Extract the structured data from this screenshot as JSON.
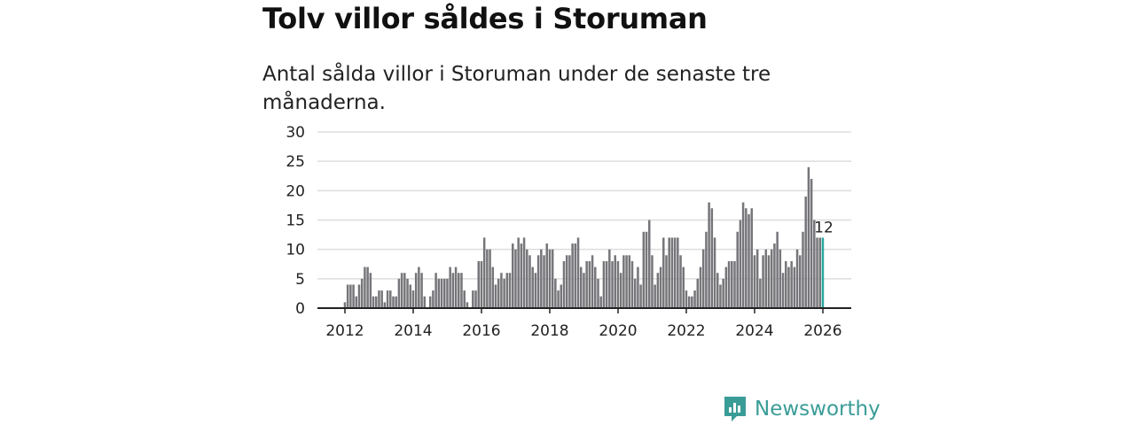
{
  "title": "Tolv villor såldes i Storuman",
  "subtitle": "Antal sålda villor i Storuman under de senaste tre månaderna.",
  "brand": "Newsworthy",
  "colors": {
    "bar": "#76767a",
    "highlight": "#2aa6a0",
    "brand": "#3a9c97",
    "grid": "#dddddd"
  },
  "chart_data": {
    "type": "bar",
    "title": "Tolv villor såldes i Storuman",
    "xlabel": "",
    "ylabel": "",
    "ylim": [
      0,
      30
    ],
    "yticks": [
      "0",
      "5",
      "10",
      "15",
      "20",
      "25",
      "30"
    ],
    "xticks": [
      "2012",
      "2014",
      "2016",
      "2018",
      "2020",
      "2022",
      "2024",
      "2026"
    ],
    "start": "2012-01",
    "frequency": "monthly",
    "values": [
      1,
      4,
      4,
      4,
      2,
      4,
      5,
      7,
      7,
      6,
      2,
      2,
      3,
      3,
      1,
      3,
      3,
      2,
      2,
      5,
      6,
      6,
      5,
      4,
      3,
      6,
      7,
      6,
      2,
      0,
      2,
      3,
      6,
      5,
      5,
      5,
      5,
      7,
      6,
      7,
      6,
      6,
      3,
      1,
      0,
      3,
      3,
      8,
      8,
      12,
      10,
      10,
      7,
      4,
      5,
      6,
      5,
      6,
      6,
      11,
      10,
      12,
      11,
      12,
      10,
      9,
      7,
      6,
      9,
      10,
      9,
      11,
      10,
      10,
      5,
      3,
      4,
      8,
      9,
      9,
      11,
      11,
      12,
      7,
      6,
      8,
      8,
      9,
      7,
      5,
      2,
      8,
      8,
      10,
      8,
      9,
      8,
      6,
      9,
      9,
      9,
      8,
      5,
      7,
      4,
      13,
      13,
      15,
      9,
      4,
      6,
      7,
      12,
      9,
      12,
      12,
      12,
      12,
      9,
      7,
      3,
      2,
      2,
      3,
      5,
      7,
      10,
      13,
      18,
      17,
      12,
      6,
      4,
      5,
      7,
      8,
      8,
      8,
      13,
      15,
      18,
      17,
      16,
      17,
      9,
      10,
      5,
      9,
      10,
      9,
      10,
      11,
      13,
      10,
      6,
      8,
      7,
      8,
      7,
      10,
      9,
      13,
      19,
      24,
      22,
      15,
      12,
      12,
      12
    ],
    "last_label": "12",
    "grid": true
  }
}
